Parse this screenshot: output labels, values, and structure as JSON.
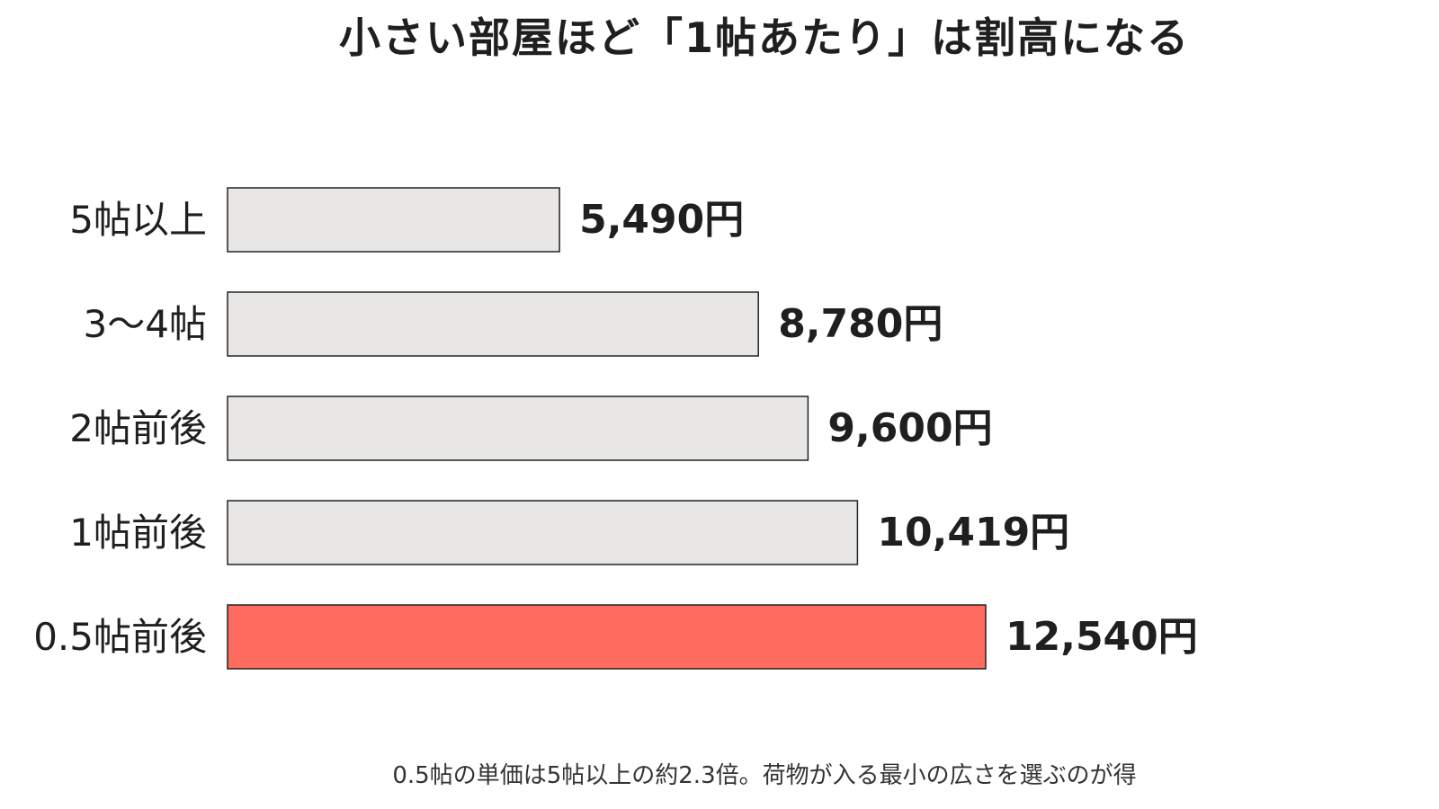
{
  "chart_data": {
    "type": "bar",
    "orientation": "horizontal",
    "title": "小さい部屋ほど「1帖あたり」は割高になる",
    "categories": [
      "5帖以上",
      "3〜4帖",
      "2帖前後",
      "1帖前後",
      "0.5帖前後"
    ],
    "values": [
      5490,
      8780,
      9600,
      10419,
      12540
    ],
    "data_labels": [
      "5,490円",
      "8,780円",
      "9,600円",
      "10,419円",
      "12,540円"
    ],
    "unit": "円",
    "xlim": [
      0,
      12540
    ],
    "grid": false,
    "legend": "none",
    "highlight_index": 4,
    "colors": {
      "bar": "#e8e7e5",
      "highlight": "#ff6b5e",
      "bar_stroke": "#222222",
      "text": "#1f1f1f"
    }
  },
  "footnote": "0.5帖の単価は5帖以上の約2.3倍。荷物が入る最小の広さを選ぶのが得"
}
